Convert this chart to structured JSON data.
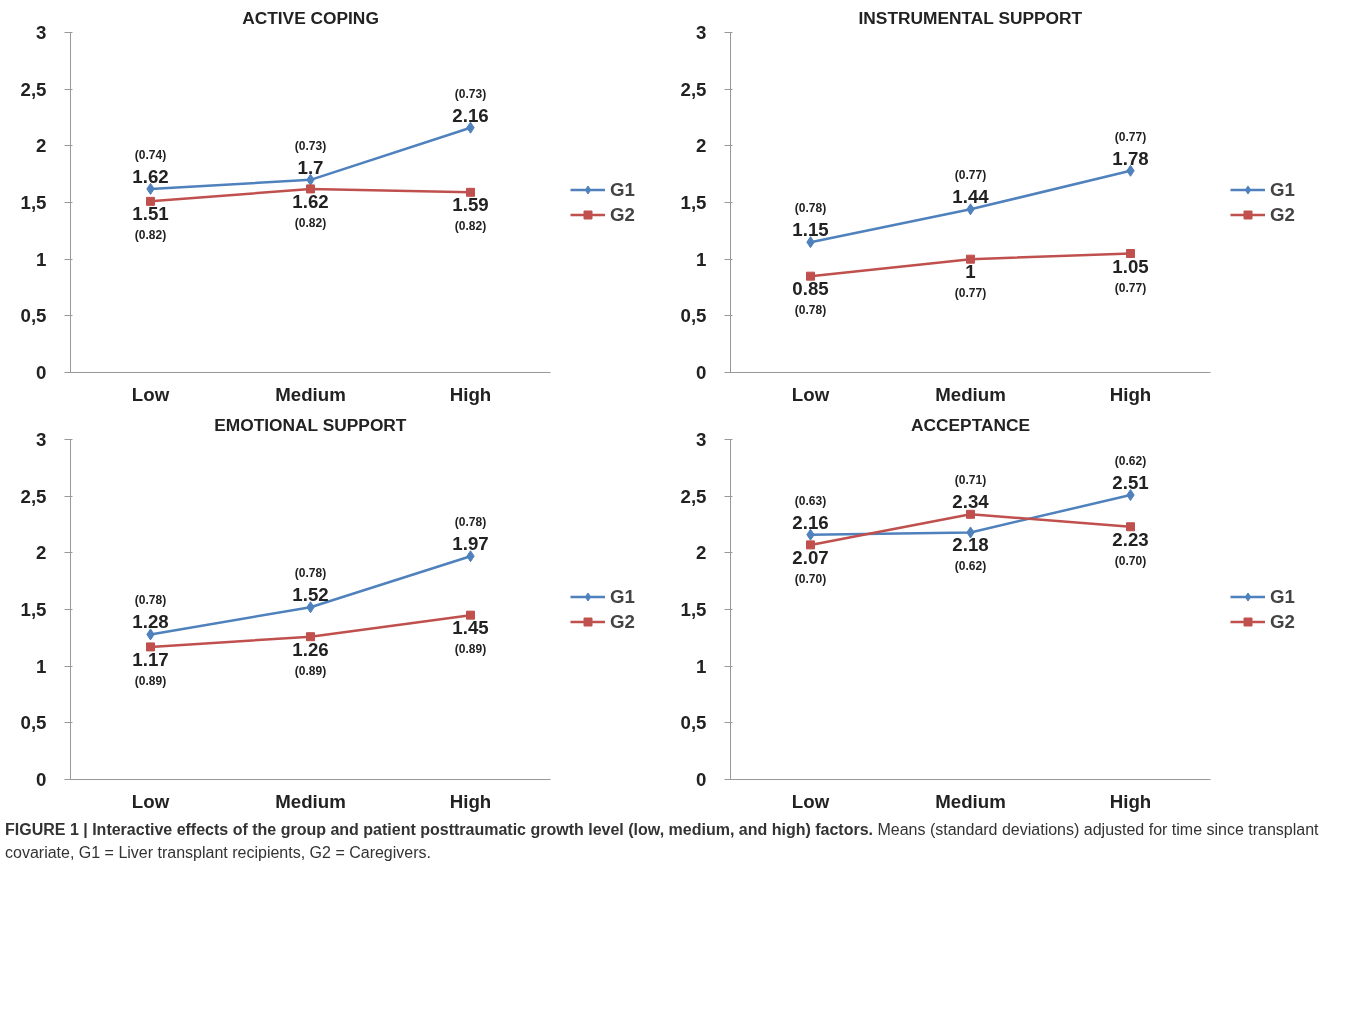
{
  "chart_data": [
    {
      "type": "line",
      "title": "ACTIVE COPING",
      "categories": [
        "Low",
        "Medium",
        "High"
      ],
      "ylim": [
        0,
        3
      ],
      "yticks": [
        0,
        {
          "value": 0.5,
          "label": "0,5"
        },
        1,
        {
          "value": 1.5,
          "label": "1,5"
        },
        2,
        {
          "value": 2.5,
          "label": "2,5"
        },
        3
      ],
      "grid": false,
      "legend": "right",
      "data_labels": true,
      "series": [
        {
          "name": "G1",
          "color": "#4f81bd",
          "marker": "diamond",
          "values": [
            1.62,
            1.7,
            2.16
          ]
        },
        {
          "name": "G2",
          "color": "#c0504d",
          "marker": "square",
          "values": [
            1.51,
            1.62,
            1.59
          ]
        }
      ],
      "annotations": [
        {
          "text": "(0.74)",
          "x": "Low",
          "y": 1.62
        },
        {
          "text": "(0.73)",
          "x": "Medium",
          "y": 1.7
        },
        {
          "text": "(0.73)",
          "x": "High",
          "y": 2.16
        },
        {
          "text": "(0.82)",
          "x": "Low",
          "y": 1.51
        },
        {
          "text": "(0.82)",
          "x": "Medium",
          "y": 1.62
        },
        {
          "text": "(0.82)",
          "x": "High",
          "y": 1.59
        }
      ]
    },
    {
      "type": "line",
      "title": "INSTRUMENTAL SUPPORT",
      "categories": [
        "Low",
        "Medium",
        "High"
      ],
      "ylim": [
        0,
        3
      ],
      "yticks": [
        0,
        {
          "value": 0.5,
          "label": "0,5"
        },
        1,
        {
          "value": 1.5,
          "label": "1,5"
        },
        2,
        {
          "value": 2.5,
          "label": "2,5"
        },
        3
      ],
      "grid": false,
      "legend": "right",
      "data_labels": true,
      "series": [
        {
          "name": "G1",
          "color": "#4f81bd",
          "marker": "diamond",
          "values": [
            1.15,
            1.44,
            1.78
          ]
        },
        {
          "name": "G2",
          "color": "#c0504d",
          "marker": "square",
          "values": [
            0.85,
            1,
            1.05
          ]
        }
      ],
      "annotations": [
        {
          "text": "(0.78)",
          "x": "Low",
          "y": 1.15
        },
        {
          "text": "(0.77)",
          "x": "Medium",
          "y": 1.44
        },
        {
          "text": "(0.77)",
          "x": "High",
          "y": 1.78
        },
        {
          "text": "(0.78)",
          "x": "Low",
          "y": 0.85
        },
        {
          "text": "(0.77)",
          "x": "Medium",
          "y": 1
        },
        {
          "text": "(0.77)",
          "x": "High",
          "y": 1.05
        }
      ]
    },
    {
      "type": "line",
      "title": "EMOTIONAL SUPPORT",
      "categories": [
        "Low",
        "Medium",
        "High"
      ],
      "ylim": [
        0,
        3
      ],
      "yticks": [
        0,
        {
          "value": 0.5,
          "label": "0,5"
        },
        1,
        {
          "value": 1.5,
          "label": "1,5"
        },
        2,
        {
          "value": 2.5,
          "label": "2,5"
        },
        3
      ],
      "grid": false,
      "legend": "right",
      "data_labels": true,
      "series": [
        {
          "name": "G1",
          "color": "#4f81bd",
          "marker": "diamond",
          "values": [
            1.28,
            1.52,
            1.97
          ]
        },
        {
          "name": "G2",
          "color": "#c0504d",
          "marker": "square",
          "values": [
            1.17,
            1.26,
            1.45
          ]
        }
      ],
      "annotations": [
        {
          "text": "(0.78)",
          "x": "Low",
          "y": 1.28
        },
        {
          "text": "(0.78)",
          "x": "Medium",
          "y": 1.52
        },
        {
          "text": "(0.78)",
          "x": "High",
          "y": 1.97
        },
        {
          "text": "(0.89)",
          "x": "Low",
          "y": 1.17
        },
        {
          "text": "(0.89)",
          "x": "Medium",
          "y": 1.26
        },
        {
          "text": "(0.89)",
          "x": "High",
          "y": 1.45
        }
      ]
    },
    {
      "type": "line",
      "title": "ACCEPTANCE",
      "categories": [
        "Low",
        "Medium",
        "High"
      ],
      "ylim": [
        0,
        3
      ],
      "yticks": [
        0,
        {
          "value": 0.5,
          "label": "0,5"
        },
        1,
        {
          "value": 1.5,
          "label": "1,5"
        },
        2,
        {
          "value": 2.5,
          "label": "2,5"
        },
        3
      ],
      "grid": false,
      "legend": "right",
      "data_labels": true,
      "series": [
        {
          "name": "G1",
          "color": "#4f81bd",
          "marker": "diamond",
          "values": [
            2.16,
            2.18,
            2.51
          ]
        },
        {
          "name": "G2",
          "color": "#c0504d",
          "marker": "square",
          "values": [
            2.07,
            2.34,
            2.23
          ]
        }
      ],
      "annotations": [
        {
          "text": "(0.63)",
          "x": "Low",
          "y": 2.16
        },
        {
          "text": "(0.62)",
          "x": "Medium",
          "y": 2.18
        },
        {
          "text": "(0.62)",
          "x": "High",
          "y": 2.51
        },
        {
          "text": "(0.70)",
          "x": "Low",
          "y": 2.07
        },
        {
          "text": "(0.71)",
          "x": "Medium",
          "y": 2.34
        },
        {
          "text": "(0.70)",
          "x": "High",
          "y": 2.23
        },
        "FIGURE 1 | Interactive effects of the group and patient posttraumatic growth level (low, medium, and high) factors.",
        "Means (standard deviations) adjusted for time since transplant covariate, G1 = Liver transplant recipients, G2 = Caregivers."
      ]
    }
  ]
}
